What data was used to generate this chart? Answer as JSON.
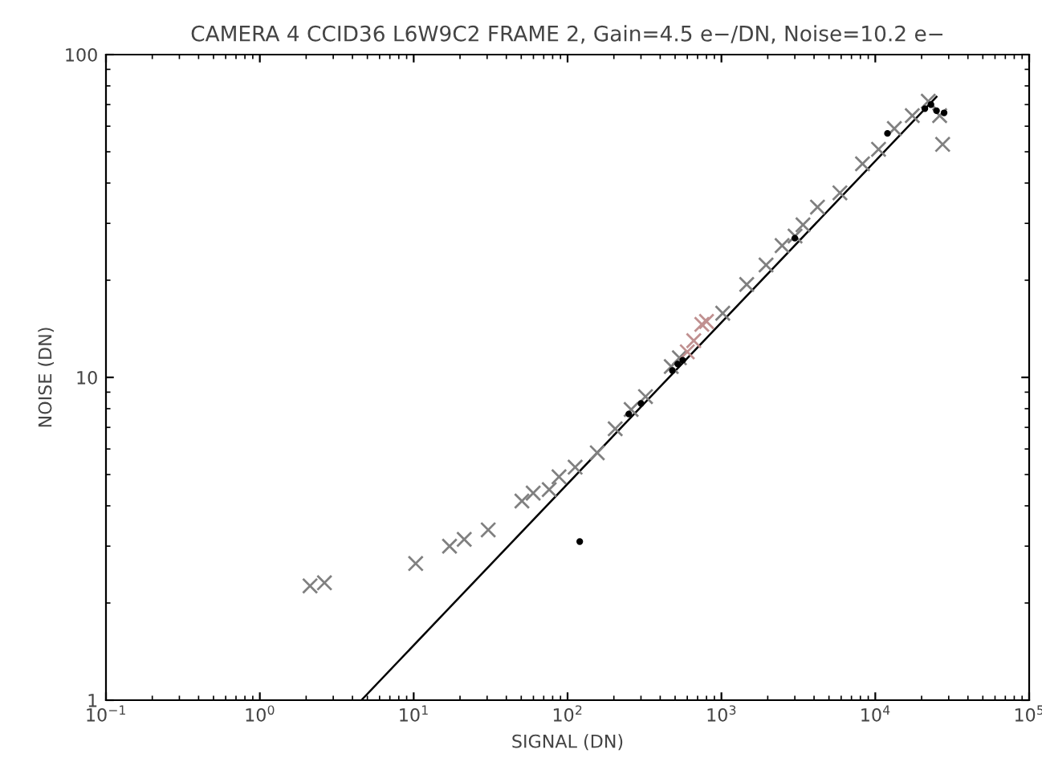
{
  "chart_data": {
    "type": "scatter",
    "title": "CAMERA 4 CCID36 L6W9C2 FRAME 2, Gain=4.5 e−/DN, Noise=10.2 e−",
    "xlabel": "SIGNAL (DN)",
    "ylabel": "NOISE (DN)",
    "log": "xy",
    "xlim": [
      0.1,
      100000
    ],
    "ylim": [
      1,
      100
    ],
    "xticks": [
      {
        "value": 0.1,
        "label": "10$^{−1}$"
      },
      {
        "value": 1,
        "label": "10$^{0}$"
      },
      {
        "value": 10,
        "label": "10$^{1}$"
      },
      {
        "value": 100,
        "label": "10$^{2}$"
      },
      {
        "value": 1000,
        "label": "10$^{3}$"
      },
      {
        "value": 10000,
        "label": "10$^{4}$"
      },
      {
        "value": 100000,
        "label": "10$^{5}$"
      }
    ],
    "yticks": [
      1,
      10,
      100
    ],
    "grid": false,
    "series": [
      {
        "marker": "cross",
        "color": "#808080",
        "x": [
          2.12,
          2.63,
          10.3,
          17.1,
          21.3,
          30.5,
          50.5,
          59.8,
          76,
          88,
          112,
          156,
          204,
          259,
          321,
          472,
          533,
          1020,
          1460,
          1950,
          2480,
          3010,
          3390,
          4210,
          5890,
          8260,
          10500,
          13300,
          17400,
          22100,
          26200,
          27400
        ],
        "values": [
          2.26,
          2.31,
          2.65,
          3.0,
          3.15,
          3.37,
          4.14,
          4.38,
          4.49,
          4.92,
          5.27,
          5.84,
          6.93,
          7.95,
          8.72,
          10.8,
          11.5,
          15.8,
          19.4,
          22.3,
          25.6,
          27.4,
          29.7,
          33.7,
          37.3,
          45.9,
          50.9,
          59.0,
          64.7,
          71.7,
          64.7,
          52.7
        ]
      },
      {
        "marker": "cross",
        "color": "#c09090",
        "x": [
          600,
          661,
          746,
          800
        ],
        "values": [
          12.0,
          13.0,
          14.6,
          14.9
        ]
      },
      {
        "marker": "circle",
        "color": "#000000",
        "x": [
          120,
          250,
          300,
          480,
          520,
          560,
          3000,
          12000,
          21000,
          23000,
          25000,
          28000
        ],
        "values": [
          3.1,
          7.7,
          8.3,
          10.5,
          11.0,
          11.3,
          27,
          57,
          68,
          70,
          67,
          66
        ]
      },
      {
        "type": "line",
        "line_style": "solid",
        "color": "#000000",
        "x": [
          4.57,
          25000
        ],
        "values": [
          1,
          74
        ]
      }
    ]
  }
}
